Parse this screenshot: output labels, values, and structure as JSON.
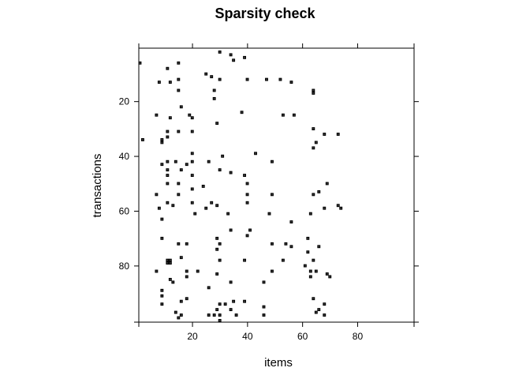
{
  "chart_data": {
    "type": "heatmap",
    "title": "Sparsity check",
    "xlabel": "items",
    "ylabel": "transactions",
    "xlim": [
      0.5,
      100.5
    ],
    "ylim": [
      100.5,
      0.5
    ],
    "x_ticks": [
      20,
      40,
      60,
      80
    ],
    "y_ticks": [
      20,
      40,
      60,
      80
    ],
    "x_tick_labels": [
      "20",
      "40",
      "60",
      "80"
    ],
    "y_tick_labels": [
      "20",
      "40",
      "60",
      "80"
    ],
    "y_axis_reversed": true,
    "cell_color": "#3a3a3a",
    "points": [
      [
        30,
        2
      ],
      [
        34,
        3
      ],
      [
        39,
        4
      ],
      [
        35,
        5
      ],
      [
        1,
        6
      ],
      [
        15,
        6
      ],
      [
        11,
        8
      ],
      [
        25,
        10
      ],
      [
        27,
        11
      ],
      [
        15,
        12
      ],
      [
        30,
        12
      ],
      [
        40,
        12
      ],
      [
        47,
        12
      ],
      [
        52,
        12
      ],
      [
        56,
        13
      ],
      [
        8,
        13
      ],
      [
        12,
        13
      ],
      [
        15,
        16
      ],
      [
        28,
        16
      ],
      [
        64,
        16
      ],
      [
        64,
        17
      ],
      [
        28,
        19
      ],
      [
        16,
        22
      ],
      [
        38,
        24
      ],
      [
        53,
        25
      ],
      [
        57,
        25
      ],
      [
        7,
        25
      ],
      [
        19,
        25
      ],
      [
        12,
        26
      ],
      [
        20,
        26
      ],
      [
        29,
        28
      ],
      [
        11,
        31
      ],
      [
        15,
        31
      ],
      [
        20,
        31
      ],
      [
        64,
        30
      ],
      [
        11,
        33
      ],
      [
        68,
        32
      ],
      [
        73,
        32
      ],
      [
        9,
        34
      ],
      [
        2,
        34
      ],
      [
        9,
        35
      ],
      [
        65,
        35
      ],
      [
        64,
        37
      ],
      [
        20,
        39
      ],
      [
        31,
        40
      ],
      [
        43,
        39
      ],
      [
        11,
        42
      ],
      [
        14,
        42
      ],
      [
        20,
        42
      ],
      [
        26,
        42
      ],
      [
        49,
        42
      ],
      [
        9,
        43
      ],
      [
        18,
        43
      ],
      [
        11,
        45
      ],
      [
        16,
        45
      ],
      [
        30,
        45
      ],
      [
        34,
        46
      ],
      [
        11,
        47
      ],
      [
        20,
        47
      ],
      [
        39,
        47
      ],
      [
        11,
        50
      ],
      [
        15,
        50
      ],
      [
        40,
        50
      ],
      [
        69,
        50
      ],
      [
        24,
        51
      ],
      [
        20,
        52
      ],
      [
        66,
        53
      ],
      [
        64,
        54
      ],
      [
        7,
        54
      ],
      [
        15,
        54
      ],
      [
        40,
        54
      ],
      [
        49,
        54
      ],
      [
        11,
        57
      ],
      [
        20,
        57
      ],
      [
        27,
        57
      ],
      [
        40,
        57
      ],
      [
        25,
        59
      ],
      [
        29,
        58
      ],
      [
        8,
        59
      ],
      [
        13,
        58
      ],
      [
        73,
        58
      ],
      [
        74,
        59
      ],
      [
        68,
        59
      ],
      [
        21,
        61
      ],
      [
        33,
        61
      ],
      [
        48,
        61
      ],
      [
        63,
        61
      ],
      [
        9,
        63
      ],
      [
        56,
        64
      ],
      [
        34,
        67
      ],
      [
        41,
        67
      ],
      [
        40,
        69
      ],
      [
        9,
        70
      ],
      [
        29,
        70
      ],
      [
        62,
        70
      ],
      [
        15,
        72
      ],
      [
        18,
        72
      ],
      [
        30,
        72
      ],
      [
        49,
        72
      ],
      [
        54,
        72
      ],
      [
        56,
        73
      ],
      [
        66,
        73
      ],
      [
        29,
        74
      ],
      [
        62,
        75
      ],
      [
        16,
        77
      ],
      [
        53,
        78
      ],
      [
        11,
        78
      ],
      [
        12,
        78
      ],
      [
        11,
        79
      ],
      [
        12,
        79
      ],
      [
        30,
        78
      ],
      [
        39,
        78
      ],
      [
        64,
        78
      ],
      [
        61,
        80
      ],
      [
        7,
        82
      ],
      [
        18,
        82
      ],
      [
        22,
        82
      ],
      [
        49,
        82
      ],
      [
        63,
        82
      ],
      [
        65,
        82
      ],
      [
        69,
        83
      ],
      [
        63,
        84
      ],
      [
        70,
        84
      ],
      [
        18,
        84
      ],
      [
        29,
        83
      ],
      [
        12,
        85
      ],
      [
        13,
        86
      ],
      [
        34,
        86
      ],
      [
        46,
        86
      ],
      [
        9,
        89
      ],
      [
        9,
        91
      ],
      [
        26,
        88
      ],
      [
        9,
        94
      ],
      [
        16,
        93
      ],
      [
        18,
        92
      ],
      [
        30,
        94
      ],
      [
        32,
        94
      ],
      [
        35,
        93
      ],
      [
        39,
        93
      ],
      [
        64,
        92
      ],
      [
        29,
        96
      ],
      [
        34,
        96
      ],
      [
        46,
        95
      ],
      [
        66,
        96
      ],
      [
        68,
        94
      ],
      [
        14,
        97
      ],
      [
        16,
        98
      ],
      [
        15,
        99
      ],
      [
        28,
        98
      ],
      [
        30,
        98
      ],
      [
        36,
        98
      ],
      [
        46,
        98
      ],
      [
        65,
        97
      ],
      [
        68,
        98
      ],
      [
        26,
        98
      ],
      [
        30,
        100
      ]
    ]
  }
}
